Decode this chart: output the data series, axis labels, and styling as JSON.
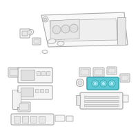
{
  "bg_color": "#ffffff",
  "lc": "#aaaaaa",
  "ec": "#aaaaaa",
  "fc": "#f5f5f5",
  "hc": "#5bc8d4",
  "he": "#3aabb5",
  "fig_width": 2.0,
  "fig_height": 2.0,
  "dpi": 100
}
